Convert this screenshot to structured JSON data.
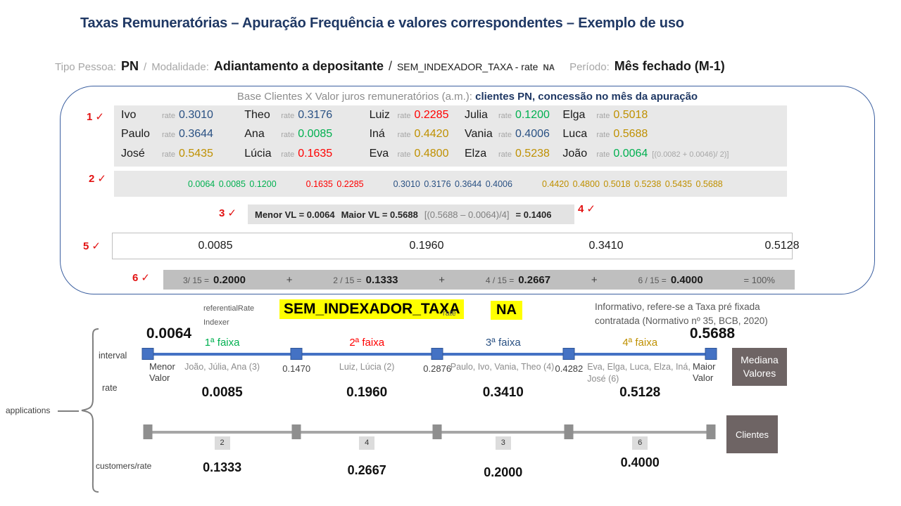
{
  "title": "Taxas Remuneratórias  – Apuração Frequência e valores correspondentes – Exemplo de uso",
  "subtitle": {
    "tipo_label": "Tipo Pessoa:",
    "tipo_value": "PN",
    "sep1": "/",
    "modalidade_label": "Modalidade:",
    "modalidade_value": "Adiantamento a depositante",
    "sep2": "/",
    "indexador": "SEM_INDEXADOR_TAXA - rate",
    "indexador_na": "NA",
    "periodo_label": "Período:",
    "periodo_value": "Mês fechado (M-1)"
  },
  "box": {
    "header_gray": "Base Clientes X Valor juros remuneratórios (a.m.): ",
    "header_dark": "clientes PN, concessão no mês da apuração",
    "check": "✓",
    "markers": {
      "m1": "1",
      "m2": "2",
      "m3": "3",
      "m4": "4",
      "m5": "5",
      "m6": "6"
    },
    "rate_label": "rate",
    "clients_columns": [
      [
        {
          "name": "Ivo",
          "rate": "0.3010",
          "color": "navy"
        },
        {
          "name": "Paulo",
          "rate": "0.3644",
          "color": "navy"
        },
        {
          "name": "José",
          "rate": "0.5435",
          "color": "gold"
        }
      ],
      [
        {
          "name": "Theo",
          "rate": "0.3176",
          "color": "navy"
        },
        {
          "name": "Ana",
          "rate": "0.0085",
          "color": "green"
        },
        {
          "name": "Lúcia",
          "rate": "0.1635",
          "color": "red"
        }
      ],
      [
        {
          "name": "Luiz",
          "rate": "0.2285",
          "color": "red"
        },
        {
          "name": "Iná",
          "rate": "0.4420",
          "color": "gold"
        },
        {
          "name": "Eva",
          "rate": "0.4800",
          "color": "gold"
        }
      ],
      [
        {
          "name": "Julia",
          "rate": "0.1200",
          "color": "green"
        },
        {
          "name": "Vania",
          "rate": "0.4006",
          "color": "navy"
        },
        {
          "name": "Elza",
          "rate": "0.5238",
          "color": "gold"
        }
      ],
      [
        {
          "name": "Elga",
          "rate": "0.5018",
          "color": "gold"
        },
        {
          "name": "Luca",
          "rate": "0.5688",
          "color": "gold"
        },
        {
          "name": "João",
          "rate": "0.0064",
          "color": "green",
          "note": "[(0.0082 + 0.0046)/ 2)]"
        }
      ]
    ],
    "sorted_groups": [
      {
        "color": "green",
        "values": "0.0064  0.0085 0.1200"
      },
      {
        "color": "red",
        "values": "0.1635  0.2285"
      },
      {
        "color": "navy",
        "values": "0.3010 0.3176 0.3644 0.4006"
      },
      {
        "color": "gold",
        "values": "0.4420 0.4800 0.5018 0.5238 0.5435 0.5688"
      }
    ],
    "calc": {
      "menor": "Menor  VL = 0.0064",
      "maior": "Maior VL = 0.5688",
      "formula": "[(0.5688 – 0.0064)/4]",
      "result": "= 0.1406"
    },
    "medians": [
      "0.0085",
      "0.1960",
      "0.3410",
      "0.5128"
    ],
    "fractions": [
      {
        "frac": "3/ 15 =",
        "value": "0.2000"
      },
      {
        "frac": "2 / 15 =",
        "value": "0.1333"
      },
      {
        "frac": "4 / 15 =",
        "value": "0.2667"
      },
      {
        "frac": "6  / 15 =",
        "value": "0.4000"
      }
    ],
    "fractions_plus": "+",
    "fractions_total": "= 100%"
  },
  "indexer_row": {
    "label_line1": "referentialRate",
    "label_line2": "Indexer",
    "highlight": "SEM_INDEXADOR_TAXA",
    "rate_label": "rate",
    "rate_value": "NA",
    "info_line1": "Informativo, refere-se a Taxa pré fixada",
    "info_line2": "contratada (Normativo  nº 35, BCB, 2020)"
  },
  "diagram": {
    "applications_label": "applications",
    "interval_label": "interval",
    "rate_label": "rate",
    "customers_label": "customers/rate",
    "min_value": "0.0064",
    "max_value": "0.5688",
    "min_caption": "Menor Valor",
    "max_caption": "Maior Valor",
    "ticks": [
      "0.1470",
      "0.2876",
      "0.4282"
    ],
    "faixas": [
      {
        "label": "1ª faixa",
        "color": "green",
        "names": "João, Júlia, Ana (3)",
        "rate": "0.0085"
      },
      {
        "label": "2ª faixa",
        "color": "red",
        "names": "Luiz, Lúcia (2)",
        "rate": "0.1960"
      },
      {
        "label": "3ª faixa",
        "color": "navy",
        "names": "Paulo, Ivo, Vania, Theo (4)",
        "rate": "0.3410"
      },
      {
        "label": "4ª faixa",
        "color": "gold",
        "names": "Eva, Elga, Luca, Elza, Iná, José (6)",
        "rate": "0.5128"
      }
    ],
    "mediana_box": "Mediana Valores",
    "clientes_box": "Clientes",
    "customer_counts": [
      "2",
      "4",
      "3",
      "6"
    ],
    "customer_rates": [
      "0.1333",
      "0.2667",
      "0.2000",
      "0.4000"
    ]
  },
  "colors": {
    "navy": "#2A5183",
    "green": "#00B050",
    "red": "#FF0000",
    "gold": "#BF9000",
    "title_navy": "#1F3864",
    "accent_blue": "#4472C4",
    "yellow_highlight": "#FFFF00"
  }
}
